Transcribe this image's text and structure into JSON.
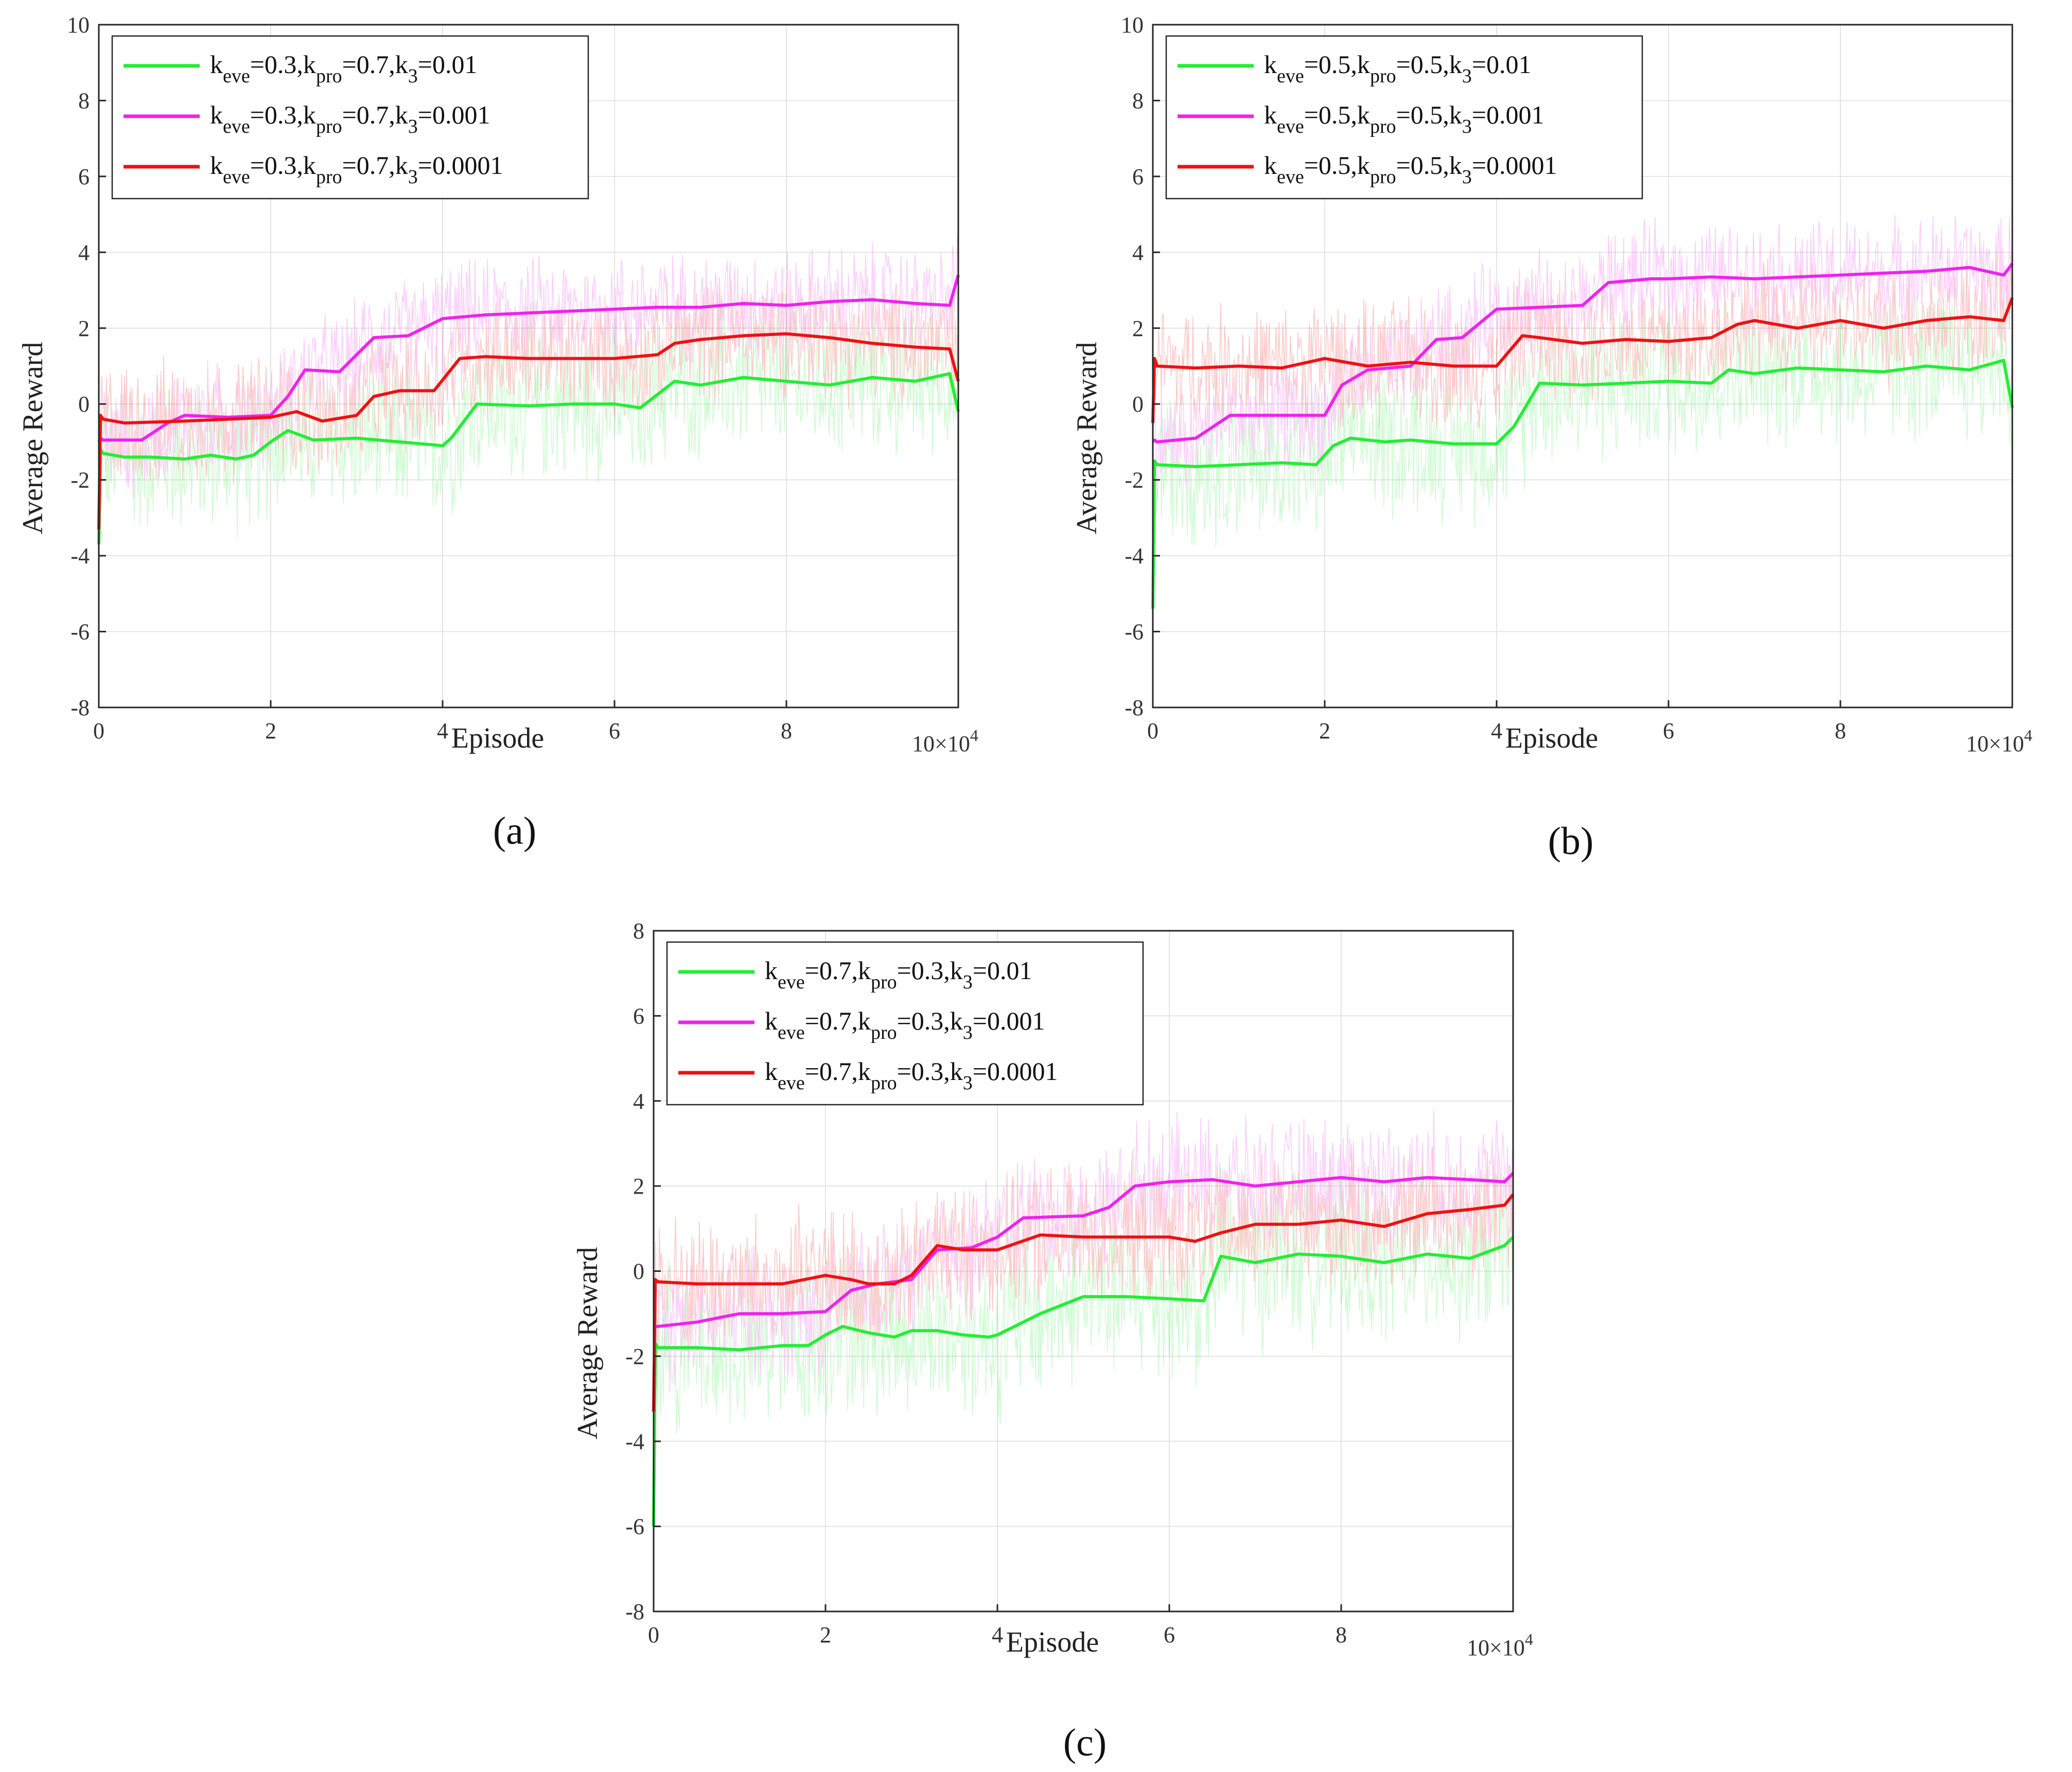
{
  "chart_data": [
    {
      "type": "line",
      "panel_label": "(a)",
      "xlabel": "Episode",
      "ylabel": "Average  Reward",
      "x_multiplier": "10×10",
      "x_multiplier_exp": "4",
      "xlim": [
        0,
        10
      ],
      "ylim": [
        -8,
        10
      ],
      "xticks": [
        "0",
        "2",
        "4",
        "6",
        "8"
      ],
      "yticks": [
        "-8",
        "-6",
        "-4",
        "-2",
        "0",
        "2",
        "4",
        "6",
        "8",
        "10"
      ],
      "grid": true,
      "legend_position": "top-left",
      "series": [
        {
          "legend": {
            "a": "k",
            "as": "eve",
            "b": "=0.3,k",
            "bs": "pro",
            "c": "=0.7,k",
            "cs": "3",
            "d": "=0.01"
          },
          "color": "#22ee33",
          "x": [
            0,
            0.02,
            0.05,
            0.3,
            0.6,
            1.0,
            1.3,
            1.6,
            1.8,
            2.0,
            2.2,
            2.5,
            3.0,
            3.5,
            4.0,
            4.1,
            4.4,
            5.0,
            5.5,
            6.0,
            6.3,
            6.7,
            7.0,
            7.5,
            8.0,
            8.5,
            9.0,
            9.5,
            9.9,
            10.0
          ],
          "values": [
            -3.7,
            -1.2,
            -1.3,
            -1.4,
            -1.4,
            -1.45,
            -1.35,
            -1.45,
            -1.35,
            -1.0,
            -0.7,
            -0.95,
            -0.9,
            -1.0,
            -1.1,
            -0.9,
            0.0,
            -0.05,
            0.0,
            0.0,
            -0.1,
            0.6,
            0.5,
            0.7,
            0.6,
            0.5,
            0.7,
            0.6,
            0.8,
            -0.2
          ]
        },
        {
          "legend": {
            "a": "k",
            "as": "eve",
            "b": "=0.3,k",
            "bs": "pro",
            "c": "=0.7,k",
            "cs": "3",
            "d": "=0.001"
          },
          "color": "#ee22ee",
          "x": [
            0,
            0.02,
            0.05,
            0.5,
            0.8,
            1.0,
            1.5,
            2.0,
            2.2,
            2.4,
            2.8,
            3.0,
            3.2,
            3.6,
            4.0,
            4.5,
            5.0,
            5.5,
            6.0,
            6.5,
            7.0,
            7.5,
            8.0,
            8.5,
            9.0,
            9.5,
            9.9,
            10.0
          ],
          "values": [
            -1.0,
            -0.9,
            -0.95,
            -0.95,
            -0.5,
            -0.3,
            -0.35,
            -0.3,
            0.2,
            0.9,
            0.85,
            1.3,
            1.75,
            1.8,
            2.25,
            2.35,
            2.4,
            2.45,
            2.5,
            2.55,
            2.55,
            2.65,
            2.6,
            2.7,
            2.75,
            2.65,
            2.6,
            3.4
          ]
        },
        {
          "legend": {
            "a": "k",
            "as": "eve",
            "b": "=0.3,k",
            "bs": "pro",
            "c": "=0.7,k",
            "cs": "3",
            "d": "=0.0001"
          },
          "color": "#ee1111",
          "x": [
            0,
            0.02,
            0.05,
            0.3,
            1.0,
            1.5,
            2.0,
            2.3,
            2.6,
            3.0,
            3.2,
            3.5,
            3.9,
            4.2,
            4.5,
            5.0,
            5.5,
            6.0,
            6.5,
            6.7,
            7.0,
            7.5,
            8.0,
            8.5,
            9.0,
            9.5,
            9.9,
            10.0
          ],
          "values": [
            -3.3,
            -0.3,
            -0.4,
            -0.5,
            -0.45,
            -0.4,
            -0.35,
            -0.2,
            -0.45,
            -0.3,
            0.2,
            0.35,
            0.35,
            1.2,
            1.25,
            1.2,
            1.2,
            1.2,
            1.3,
            1.6,
            1.7,
            1.8,
            1.85,
            1.75,
            1.6,
            1.5,
            1.45,
            0.6
          ]
        }
      ]
    },
    {
      "type": "line",
      "panel_label": "(b)",
      "xlabel": "Episode",
      "ylabel": "Average  Reward",
      "x_multiplier": "10×10",
      "x_multiplier_exp": "4",
      "xlim": [
        0,
        10
      ],
      "ylim": [
        -8,
        10
      ],
      "xticks": [
        "0",
        "2",
        "4",
        "6",
        "8"
      ],
      "yticks": [
        "-8",
        "-6",
        "-4",
        "-2",
        "0",
        "2",
        "4",
        "6",
        "8",
        "10"
      ],
      "grid": true,
      "legend_position": "top-left",
      "series": [
        {
          "legend": {
            "a": "k",
            "as": "eve",
            "b": "=0.5,k",
            "bs": "pro",
            "c": "=0.5,k",
            "cs": "3",
            "d": "=0.01"
          },
          "color": "#22ee33",
          "x": [
            0,
            0.02,
            0.05,
            0.5,
            1.0,
            1.5,
            1.9,
            2.1,
            2.3,
            2.7,
            3.0,
            3.5,
            4.0,
            4.2,
            4.5,
            5.0,
            5.5,
            6.0,
            6.5,
            6.7,
            7.0,
            7.5,
            8.0,
            8.5,
            9.0,
            9.5,
            9.9,
            10.0
          ],
          "values": [
            -5.4,
            -1.5,
            -1.6,
            -1.65,
            -1.6,
            -1.55,
            -1.6,
            -1.1,
            -0.9,
            -1.0,
            -0.95,
            -1.05,
            -1.05,
            -0.6,
            0.55,
            0.5,
            0.55,
            0.6,
            0.55,
            0.9,
            0.8,
            0.95,
            0.9,
            0.85,
            1.0,
            0.9,
            1.15,
            -0.1
          ]
        },
        {
          "legend": {
            "a": "k",
            "as": "eve",
            "b": "=0.5,k",
            "bs": "pro",
            "c": "=0.5,k",
            "cs": "3",
            "d": "=0.001"
          },
          "color": "#ee22ee",
          "x": [
            0,
            0.02,
            0.05,
            0.5,
            0.9,
            1.5,
            2.0,
            2.2,
            2.5,
            3.0,
            3.3,
            3.6,
            4.0,
            4.5,
            5.0,
            5.3,
            5.8,
            6.0,
            6.5,
            7.0,
            7.5,
            8.0,
            8.5,
            9.0,
            9.5,
            9.9,
            10.0
          ],
          "values": [
            -1.0,
            -0.95,
            -1.0,
            -0.9,
            -0.3,
            -0.3,
            -0.3,
            0.5,
            0.9,
            1.0,
            1.7,
            1.75,
            2.5,
            2.55,
            2.6,
            3.2,
            3.3,
            3.3,
            3.35,
            3.3,
            3.35,
            3.4,
            3.45,
            3.5,
            3.6,
            3.4,
            3.7
          ]
        },
        {
          "legend": {
            "a": "k",
            "as": "eve",
            "b": "=0.5,k",
            "bs": "pro",
            "c": "=0.5,k",
            "cs": "3",
            "d": "=0.0001"
          },
          "color": "#ee1111",
          "x": [
            0,
            0.02,
            0.05,
            0.5,
            1.0,
            1.5,
            2.0,
            2.5,
            3.0,
            3.5,
            4.0,
            4.3,
            4.5,
            5.0,
            5.5,
            6.0,
            6.5,
            6.8,
            7.0,
            7.5,
            8.0,
            8.5,
            9.0,
            9.5,
            9.9,
            10.0
          ],
          "values": [
            -0.5,
            1.2,
            1.0,
            0.95,
            1.0,
            0.95,
            1.2,
            1.0,
            1.1,
            1.0,
            1.0,
            1.8,
            1.75,
            1.6,
            1.7,
            1.65,
            1.75,
            2.1,
            2.2,
            2.0,
            2.2,
            2.0,
            2.2,
            2.3,
            2.2,
            2.8
          ]
        }
      ]
    },
    {
      "type": "line",
      "panel_label": "(c)",
      "xlabel": "Episode",
      "ylabel": "Average  Reward",
      "x_multiplier": "10×10",
      "x_multiplier_exp": "4",
      "xlim": [
        0,
        10
      ],
      "ylim": [
        -8,
        8
      ],
      "xticks": [
        "0",
        "2",
        "4",
        "6",
        "8"
      ],
      "yticks": [
        "-8",
        "-6",
        "-4",
        "-2",
        "0",
        "2",
        "4",
        "6",
        "8"
      ],
      "grid": true,
      "legend_position": "top-left",
      "series": [
        {
          "legend": {
            "a": "k",
            "as": "eve",
            "b": "=0.7,k",
            "bs": "pro",
            "c": "=0.3,k",
            "cs": "3",
            "d": "=0.01"
          },
          "color": "#22ee33",
          "x": [
            0,
            0.02,
            0.05,
            0.5,
            1.0,
            1.5,
            1.8,
            2.0,
            2.2,
            2.5,
            2.8,
            3.0,
            3.3,
            3.6,
            3.9,
            4.0,
            4.5,
            5.0,
            5.5,
            6.0,
            6.4,
            6.6,
            7.0,
            7.5,
            8.0,
            8.5,
            9.0,
            9.5,
            9.9,
            10.0
          ],
          "values": [
            -6.0,
            -1.7,
            -1.8,
            -1.8,
            -1.85,
            -1.75,
            -1.75,
            -1.5,
            -1.3,
            -1.45,
            -1.55,
            -1.4,
            -1.4,
            -1.5,
            -1.55,
            -1.5,
            -1.0,
            -0.6,
            -0.6,
            -0.65,
            -0.7,
            0.35,
            0.2,
            0.4,
            0.35,
            0.2,
            0.4,
            0.3,
            0.6,
            0.8
          ]
        },
        {
          "legend": {
            "a": "k",
            "as": "eve",
            "b": "=0.7,k",
            "bs": "pro",
            "c": "=0.3,k",
            "cs": "3",
            "d": "=0.001"
          },
          "color": "#ee22ee",
          "x": [
            0,
            0.02,
            0.05,
            0.5,
            1.0,
            1.5,
            2.0,
            2.3,
            2.6,
            3.0,
            3.3,
            3.7,
            4.0,
            4.3,
            5.0,
            5.3,
            5.6,
            6.0,
            6.5,
            7.0,
            7.5,
            8.0,
            8.5,
            9.0,
            9.5,
            9.9,
            10.0
          ],
          "values": [
            -1.3,
            -1.3,
            -1.3,
            -1.2,
            -1.0,
            -1.0,
            -0.95,
            -0.45,
            -0.3,
            -0.2,
            0.5,
            0.55,
            0.8,
            1.25,
            1.3,
            1.5,
            2.0,
            2.1,
            2.15,
            2.0,
            2.1,
            2.2,
            2.1,
            2.2,
            2.15,
            2.1,
            2.3
          ]
        },
        {
          "legend": {
            "a": "k",
            "as": "eve",
            "b": "=0.7,k",
            "bs": "pro",
            "c": "=0.3,k",
            "cs": "3",
            "d": "=0.0001"
          },
          "color": "#ee1111",
          "x": [
            0,
            0.02,
            0.05,
            0.5,
            1.0,
            1.5,
            2.0,
            2.3,
            2.5,
            2.8,
            3.0,
            3.3,
            3.6,
            4.0,
            4.5,
            5.0,
            5.5,
            6.0,
            6.3,
            6.6,
            7.0,
            7.5,
            8.0,
            8.5,
            9.0,
            9.5,
            9.9,
            10.0
          ],
          "values": [
            -3.3,
            -0.2,
            -0.25,
            -0.3,
            -0.3,
            -0.3,
            -0.1,
            -0.2,
            -0.3,
            -0.3,
            -0.1,
            0.6,
            0.5,
            0.5,
            0.85,
            0.8,
            0.8,
            0.8,
            0.7,
            0.9,
            1.1,
            1.1,
            1.2,
            1.05,
            1.35,
            1.45,
            1.55,
            1.8
          ]
        }
      ]
    }
  ]
}
